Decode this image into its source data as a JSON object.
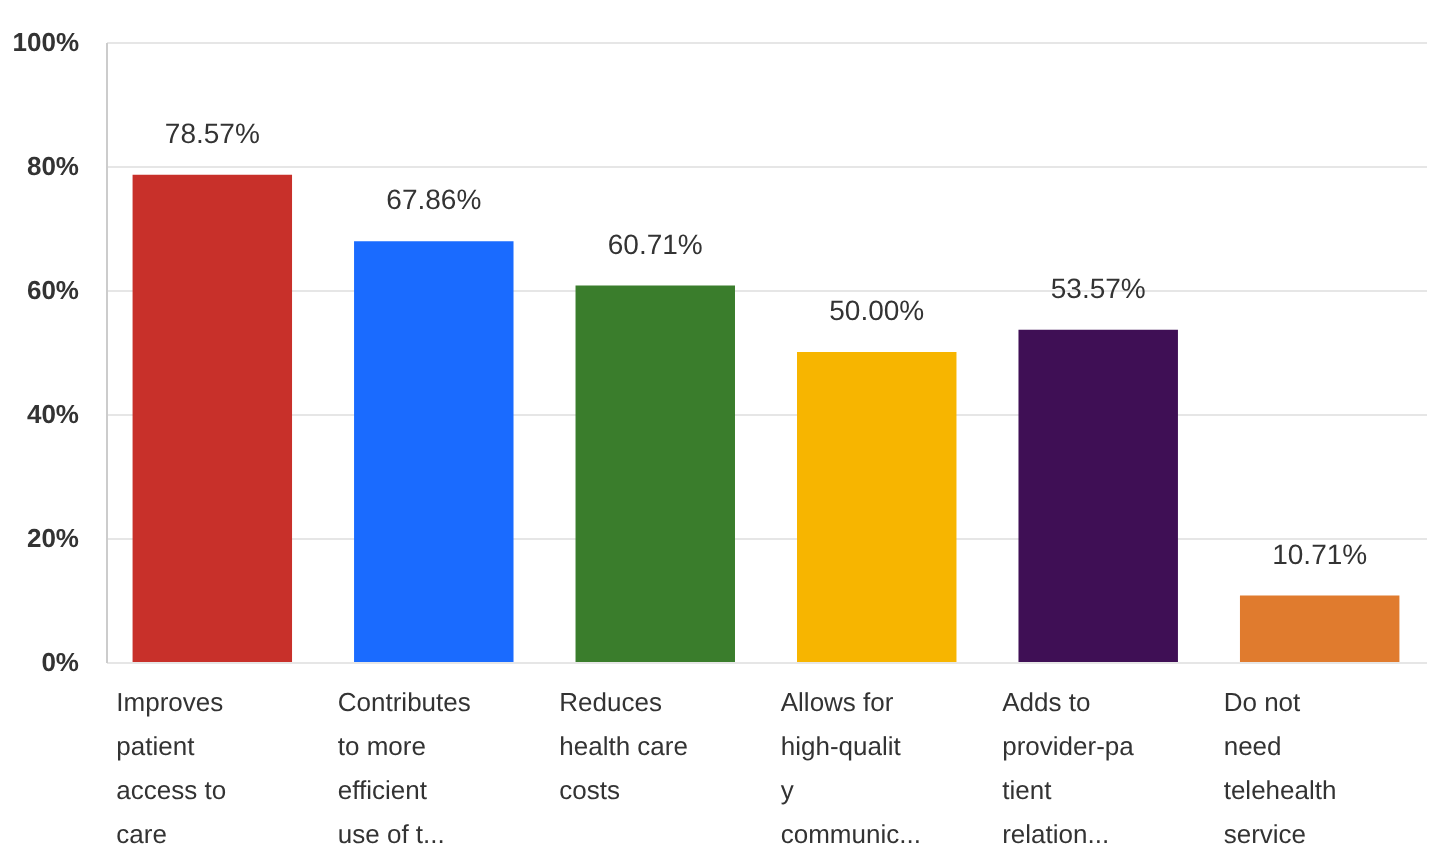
{
  "chart_data": {
    "type": "bar",
    "categories": [
      "Improves\npatient\naccess to\ncare",
      "Contributes\nto more\nefficient\nuse of t...",
      "Reduces\nhealth care\ncosts",
      "Allows for\nhigh-qualit\ny\ncommunic...",
      "Adds to\nprovider-pa\ntient\nrelation...",
      "Do not\nneed\ntelehealth\nservice"
    ],
    "values": [
      78.57,
      67.86,
      60.71,
      50.0,
      53.57,
      10.71
    ],
    "colors": [
      "#c8302a",
      "#1a6bff",
      "#3a7d2c",
      "#f7b500",
      "#3f0f55",
      "#e07b2e"
    ],
    "value_labels": [
      "78.57%",
      "67.86%",
      "60.71%",
      "50.00%",
      "53.57%",
      "10.71%"
    ],
    "ylim": [
      0,
      100
    ],
    "yticks": [
      {
        "value": 0,
        "label": "0%"
      },
      {
        "value": 20,
        "label": "20%"
      },
      {
        "value": 40,
        "label": "40%"
      },
      {
        "value": 60,
        "label": "60%"
      },
      {
        "value": 80,
        "label": "80%"
      },
      {
        "value": 100,
        "label": "100%"
      }
    ],
    "grid": "y",
    "legend": false
  }
}
